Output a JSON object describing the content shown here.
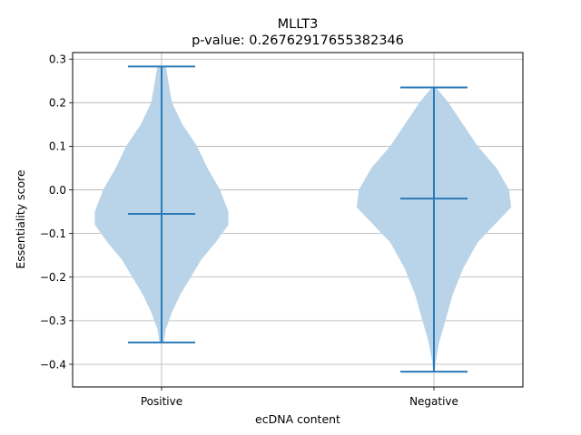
{
  "chart_data": {
    "type": "violin",
    "title": "MLLT3",
    "subtitle": "p-value: 0.26762917655382346",
    "xlabel": "ecDNA content",
    "ylabel": "Essentiality score",
    "categories": [
      "Positive",
      "Negative"
    ],
    "ylim": [
      -0.452,
      0.315
    ],
    "yticks": [
      -0.4,
      -0.3,
      -0.2,
      -0.1,
      0.0,
      0.1,
      0.2,
      0.3
    ],
    "ytick_labels": [
      "−0.4",
      "−0.3",
      "−0.2",
      "−0.1",
      "0.0",
      "0.1",
      "0.2",
      "0.3"
    ],
    "grid": true,
    "colors": {
      "body": "#b9d4e8",
      "lines": "#2a7ab8",
      "grid": "#b0b0b0"
    },
    "violins": [
      {
        "name": "Positive",
        "min": -0.35,
        "max": 0.283,
        "median": -0.055,
        "density": [
          [
            0.283,
            0.02
          ],
          [
            0.27,
            0.025
          ],
          [
            0.24,
            0.035
          ],
          [
            0.2,
            0.05
          ],
          [
            0.15,
            0.1
          ],
          [
            0.1,
            0.17
          ],
          [
            0.05,
            0.22
          ],
          [
            0.0,
            0.28
          ],
          [
            -0.05,
            0.32
          ],
          [
            -0.08,
            0.32
          ],
          [
            -0.12,
            0.26
          ],
          [
            -0.16,
            0.19
          ],
          [
            -0.2,
            0.14
          ],
          [
            -0.24,
            0.09
          ],
          [
            -0.28,
            0.05
          ],
          [
            -0.32,
            0.02
          ],
          [
            -0.35,
            0.01
          ]
        ]
      },
      {
        "name": "Negative",
        "min": -0.417,
        "max": 0.235,
        "median": -0.02,
        "density": [
          [
            0.235,
            0.01
          ],
          [
            0.2,
            0.07
          ],
          [
            0.15,
            0.14
          ],
          [
            0.1,
            0.21
          ],
          [
            0.05,
            0.3
          ],
          [
            0.0,
            0.36
          ],
          [
            -0.04,
            0.37
          ],
          [
            -0.08,
            0.29
          ],
          [
            -0.12,
            0.21
          ],
          [
            -0.18,
            0.14
          ],
          [
            -0.24,
            0.09
          ],
          [
            -0.3,
            0.055
          ],
          [
            -0.35,
            0.025
          ],
          [
            -0.39,
            0.01
          ],
          [
            -0.417,
            0.003
          ]
        ]
      }
    ]
  }
}
